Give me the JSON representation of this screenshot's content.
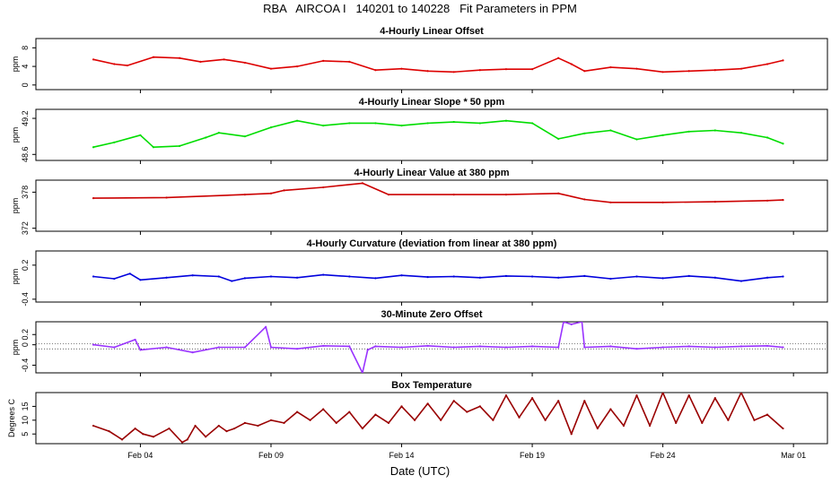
{
  "title": "RBA   AIRCOA I   140201 to 140228   Fit Parameters in PPM",
  "x_axis": {
    "label": "Date (UTC)",
    "ticks": [
      "Feb 04",
      "Feb 09",
      "Feb 14",
      "Feb 19",
      "Feb 24",
      "Mar 01"
    ]
  },
  "chart_data": [
    {
      "type": "line",
      "title": "4-Hourly Linear Offset",
      "ylabel": "ppm",
      "yticks": [
        "0",
        "4",
        "8"
      ],
      "ylim": [
        -1,
        10
      ],
      "color": "#dd0000",
      "x": [
        2.2,
        3.0,
        3.5,
        4.5,
        5.5,
        6.3,
        7.2,
        8.0,
        9.0,
        10.0,
        11.0,
        12.0,
        13.0,
        14.0,
        15.0,
        16.0,
        17.0,
        18.0,
        19.0,
        20.0,
        20.5,
        21.0,
        22.0,
        23.0,
        24.0,
        25.0,
        26.0,
        27.0,
        28.0,
        28.6
      ],
      "values": [
        5.5,
        4.5,
        4.2,
        6.0,
        5.8,
        5.0,
        5.5,
        4.8,
        3.5,
        4.0,
        5.2,
        5.0,
        3.2,
        3.5,
        3.0,
        2.8,
        3.2,
        3.4,
        3.4,
        5.8,
        4.5,
        3.0,
        3.8,
        3.5,
        2.8,
        3.0,
        3.2,
        3.5,
        4.5,
        5.3
      ]
    },
    {
      "type": "line",
      "title": "4-Hourly Linear Slope * 50 ppm",
      "ylabel": "ppm",
      "yticks": [
        "48.6",
        "49.2"
      ],
      "ylim": [
        48.5,
        49.35
      ],
      "color": "#00dd00",
      "x": [
        2.2,
        3.0,
        4.0,
        4.5,
        5.5,
        6.5,
        7.0,
        8.0,
        9.0,
        10.0,
        11.0,
        12.0,
        13.0,
        14.0,
        15.0,
        16.0,
        17.0,
        18.0,
        19.0,
        20.0,
        21.0,
        22.0,
        23.0,
        24.0,
        25.0,
        26.0,
        27.0,
        28.0,
        28.6
      ],
      "values": [
        48.72,
        48.8,
        48.92,
        48.72,
        48.74,
        48.88,
        48.96,
        48.9,
        49.05,
        49.16,
        49.08,
        49.12,
        49.12,
        49.08,
        49.12,
        49.14,
        49.12,
        49.16,
        49.12,
        48.86,
        48.95,
        49.0,
        48.85,
        48.92,
        48.98,
        49.0,
        48.96,
        48.88,
        48.78
      ]
    },
    {
      "type": "line",
      "title": "4-Hourly Linear Value at 380 ppm",
      "ylabel": "ppm",
      "yticks": [
        "372",
        "378"
      ],
      "ylim": [
        371.5,
        380
      ],
      "color": "#cc0000",
      "x": [
        2.2,
        5.0,
        8.0,
        9.0,
        9.5,
        11.0,
        12.5,
        13.5,
        16.0,
        18.0,
        20.0,
        21.0,
        22.0,
        24.0,
        26.0,
        28.0,
        28.6
      ],
      "values": [
        377.0,
        377.1,
        377.6,
        377.8,
        378.3,
        378.8,
        379.5,
        377.6,
        377.6,
        377.6,
        377.8,
        376.8,
        376.3,
        376.3,
        376.4,
        376.6,
        376.7
      ]
    },
    {
      "type": "line",
      "title": "4-Hourly Curvature (deviation from linear at 380 ppm)",
      "ylabel": "ppm",
      "yticks": [
        "-0.4",
        "0.2"
      ],
      "ylim": [
        -0.45,
        0.45
      ],
      "color": "#0000dd",
      "x": [
        2.2,
        3.0,
        3.6,
        4.0,
        5.0,
        6.0,
        7.0,
        7.5,
        8.0,
        9.0,
        10.0,
        11.0,
        12.0,
        13.0,
        14.0,
        15.0,
        16.0,
        17.0,
        18.0,
        19.0,
        20.0,
        21.0,
        22.0,
        23.0,
        24.0,
        25.0,
        26.0,
        27.0,
        28.0,
        28.6
      ],
      "values": [
        0.0,
        -0.04,
        0.05,
        -0.06,
        -0.02,
        0.02,
        0.0,
        -0.08,
        -0.03,
        0.0,
        -0.02,
        0.03,
        0.0,
        -0.03,
        0.02,
        -0.01,
        0.0,
        -0.02,
        0.01,
        0.0,
        -0.02,
        0.01,
        -0.04,
        0.0,
        -0.03,
        0.01,
        -0.02,
        -0.08,
        -0.02,
        0.0
      ]
    },
    {
      "type": "line",
      "title": "30-Minute Zero Offset",
      "ylabel": "ppm",
      "yticks": [
        "-0.4",
        "0",
        "0.2"
      ],
      "ylim": [
        -0.55,
        0.45
      ],
      "color": "#9933ff",
      "x": [
        2.2,
        3.0,
        3.8,
        4.0,
        5.0,
        6.0,
        7.0,
        8.0,
        8.8,
        9.0,
        10.0,
        11.0,
        12.0,
        12.5,
        12.7,
        13.0,
        14.0,
        15.0,
        16.0,
        17.0,
        18.0,
        19.0,
        20.0,
        20.2,
        20.5,
        20.9,
        21.0,
        22.0,
        23.0,
        24.0,
        25.0,
        26.0,
        27.0,
        28.0,
        28.6
      ],
      "values": [
        0.0,
        -0.05,
        0.1,
        -0.1,
        -0.05,
        -0.15,
        -0.05,
        -0.05,
        0.35,
        -0.05,
        -0.08,
        -0.02,
        -0.03,
        -0.55,
        -0.1,
        -0.03,
        -0.05,
        -0.02,
        -0.05,
        -0.03,
        -0.05,
        -0.03,
        -0.05,
        0.45,
        0.4,
        0.45,
        -0.05,
        -0.03,
        -0.08,
        -0.05,
        -0.03,
        -0.05,
        -0.03,
        -0.02,
        -0.05
      ]
    },
    {
      "type": "line",
      "title": "Box Temperature",
      "ylabel": "Degrees C",
      "yticks": [
        "5",
        "10",
        "15"
      ],
      "ylim": [
        1.5,
        20
      ],
      "color": "#990000",
      "x": [
        2.2,
        2.8,
        3.3,
        3.8,
        4.1,
        4.5,
        5.1,
        5.6,
        5.8,
        6.1,
        6.5,
        7.0,
        7.3,
        7.6,
        8.0,
        8.5,
        9.0,
        9.5,
        10.0,
        10.5,
        11.0,
        11.5,
        12.0,
        12.5,
        13.0,
        13.5,
        14.0,
        14.5,
        15.0,
        15.5,
        16.0,
        16.5,
        17.0,
        17.5,
        18.0,
        18.5,
        19.0,
        19.5,
        20.0,
        20.5,
        21.0,
        21.5,
        22.0,
        22.5,
        23.0,
        23.5,
        24.0,
        24.5,
        25.0,
        25.5,
        26.0,
        26.5,
        27.0,
        27.5,
        28.0,
        28.6
      ],
      "values": [
        8,
        6,
        3,
        7,
        5,
        4,
        7,
        2,
        3,
        8,
        4,
        8,
        6,
        7,
        9,
        8,
        10,
        9,
        13,
        10,
        14,
        9,
        13,
        7,
        12,
        9,
        15,
        10,
        16,
        10,
        17,
        13,
        15,
        10,
        19,
        11,
        18,
        10,
        17,
        5,
        17,
        7,
        14,
        8,
        19,
        8,
        20,
        9,
        19,
        9,
        18,
        10,
        20,
        10,
        12,
        7
      ]
    }
  ]
}
